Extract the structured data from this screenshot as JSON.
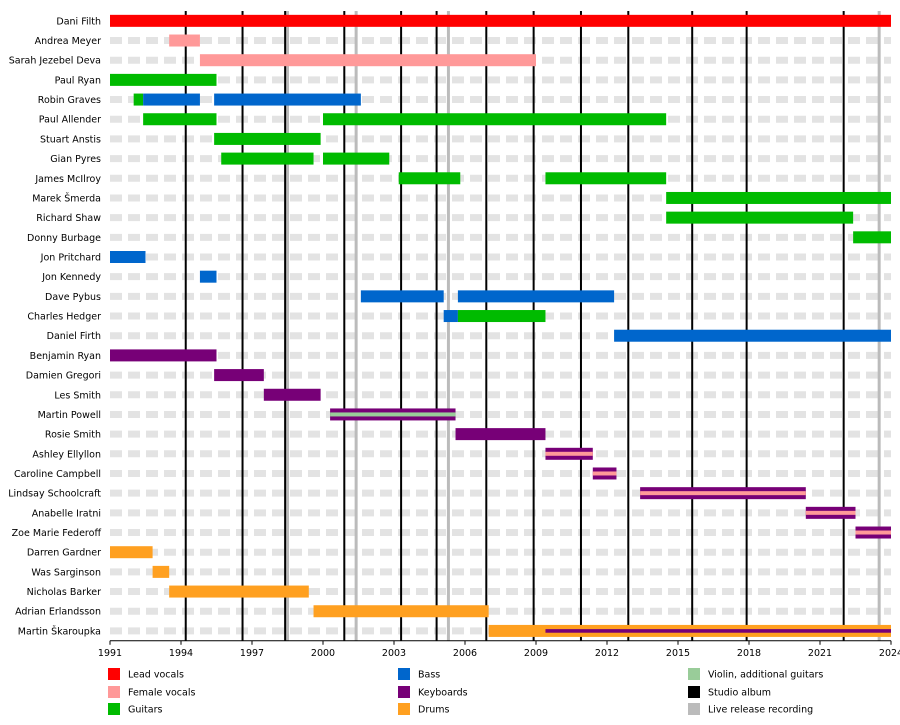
{
  "chart_data": {
    "type": "timeline",
    "title": "",
    "xlim": [
      1991,
      2024
    ],
    "x_ticks": [
      "1991",
      "1994",
      "1997",
      "2000",
      "2003",
      "2006",
      "2009",
      "2012",
      "2015",
      "2018",
      "2021",
      "2024"
    ],
    "colors": {
      "lead_vocals": "#ff0000",
      "female_vocals": "#ff9999",
      "guitars": "#00bb00",
      "bass": "#0066cc",
      "keyboards": "#770077",
      "drums": "#ffa020",
      "violin": "#99cc99",
      "studio": "#000000",
      "live": "#bbbbbb"
    },
    "members": [
      {
        "name": "Dani Filth",
        "bars": [
          {
            "role": "lead_vocals",
            "start": 1991.0,
            "end": 2024.0
          }
        ]
      },
      {
        "name": "Andrea Meyer",
        "bars": [
          {
            "role": "female_vocals",
            "start": 1993.5,
            "end": 1994.8
          }
        ]
      },
      {
        "name": "Sarah Jezebel Deva",
        "bars": [
          {
            "role": "female_vocals",
            "start": 1994.8,
            "end": 2009.0
          }
        ]
      },
      {
        "name": "Paul Ryan",
        "bars": [
          {
            "role": "guitars",
            "start": 1991.0,
            "end": 1995.5
          }
        ]
      },
      {
        "name": "Robin Graves",
        "bars": [
          {
            "role": "guitars",
            "start": 1992.0,
            "end": 1992.4
          },
          {
            "role": "bass",
            "start": 1992.4,
            "end": 1994.8
          },
          {
            "role": "bass",
            "start": 1995.4,
            "end": 2001.6
          }
        ]
      },
      {
        "name": "Paul Allender",
        "bars": [
          {
            "role": "guitars",
            "start": 1992.4,
            "end": 1995.5
          },
          {
            "role": "guitars",
            "start": 2000.0,
            "end": 2014.5
          }
        ]
      },
      {
        "name": "Stuart Anstis",
        "bars": [
          {
            "role": "guitars",
            "start": 1995.4,
            "end": 1999.9
          }
        ]
      },
      {
        "name": "Gian Pyres",
        "bars": [
          {
            "role": "guitars",
            "start": 1995.7,
            "end": 1999.6
          },
          {
            "role": "guitars",
            "start": 2000.0,
            "end": 2002.8
          }
        ]
      },
      {
        "name": "James McIlroy",
        "bars": [
          {
            "role": "guitars",
            "start": 2003.2,
            "end": 2005.8
          },
          {
            "role": "guitars",
            "start": 2009.4,
            "end": 2014.5
          }
        ]
      },
      {
        "name": "Marek Šmerda",
        "bars": [
          {
            "role": "guitars",
            "start": 2014.5,
            "end": 2024.0
          }
        ]
      },
      {
        "name": "Richard Shaw",
        "bars": [
          {
            "role": "guitars",
            "start": 2014.5,
            "end": 2022.4
          }
        ]
      },
      {
        "name": "Donny Burbage",
        "bars": [
          {
            "role": "guitars",
            "start": 2022.4,
            "end": 2024.0
          }
        ]
      },
      {
        "name": "Jon Pritchard",
        "bars": [
          {
            "role": "bass",
            "start": 1991.0,
            "end": 1992.5
          }
        ]
      },
      {
        "name": "Jon Kennedy",
        "bars": [
          {
            "role": "bass",
            "start": 1994.8,
            "end": 1995.5
          }
        ]
      },
      {
        "name": "Dave Pybus",
        "bars": [
          {
            "role": "bass",
            "start": 2001.6,
            "end": 2005.1
          },
          {
            "role": "bass",
            "start": 2005.7,
            "end": 2012.3
          }
        ]
      },
      {
        "name": "Charles Hedger",
        "bars": [
          {
            "role": "bass",
            "start": 2005.1,
            "end": 2005.7
          },
          {
            "role": "guitars",
            "start": 2005.7,
            "end": 2009.4
          }
        ]
      },
      {
        "name": "Daniel Firth",
        "bars": [
          {
            "role": "bass",
            "start": 2012.3,
            "end": 2024.0
          }
        ]
      },
      {
        "name": "Benjamin Ryan",
        "bars": [
          {
            "role": "keyboards",
            "start": 1991.0,
            "end": 1995.5
          }
        ]
      },
      {
        "name": "Damien Gregori",
        "bars": [
          {
            "role": "keyboards",
            "start": 1995.4,
            "end": 1997.5
          }
        ]
      },
      {
        "name": "Les Smith",
        "bars": [
          {
            "role": "keyboards",
            "start": 1997.5,
            "end": 1999.9
          }
        ]
      },
      {
        "name": "Martin Powell",
        "bars": [
          {
            "role": "keyboards",
            "role2": "violin",
            "start": 2000.3,
            "end": 2005.6
          }
        ]
      },
      {
        "name": "Rosie Smith",
        "bars": [
          {
            "role": "keyboards",
            "start": 2005.6,
            "end": 2009.4
          }
        ]
      },
      {
        "name": "Ashley Ellyllon",
        "bars": [
          {
            "role": "keyboards",
            "role2": "female_vocals",
            "start": 2009.4,
            "end": 2011.4
          }
        ]
      },
      {
        "name": "Caroline Campbell",
        "bars": [
          {
            "role": "keyboards",
            "role2": "female_vocals",
            "start": 2011.4,
            "end": 2012.4
          }
        ]
      },
      {
        "name": "Lindsay Schoolcraft",
        "bars": [
          {
            "role": "keyboards",
            "role2": "female_vocals",
            "start": 2013.4,
            "end": 2020.4
          }
        ]
      },
      {
        "name": "Anabelle Iratni",
        "bars": [
          {
            "role": "keyboards",
            "role2": "female_vocals",
            "start": 2020.4,
            "end": 2022.5
          }
        ]
      },
      {
        "name": "Zoe Marie Federoff",
        "bars": [
          {
            "role": "keyboards",
            "role2": "female_vocals",
            "start": 2022.5,
            "end": 2024.0
          }
        ]
      },
      {
        "name": "Darren Gardner",
        "bars": [
          {
            "role": "drums",
            "start": 1991.0,
            "end": 1992.8
          }
        ]
      },
      {
        "name": "Was Sarginson",
        "bars": [
          {
            "role": "drums",
            "start": 1992.8,
            "end": 1993.5
          }
        ]
      },
      {
        "name": "Nicholas Barker",
        "bars": [
          {
            "role": "drums",
            "start": 1993.5,
            "end": 1999.4
          }
        ]
      },
      {
        "name": "Adrian Erlandsson",
        "bars": [
          {
            "role": "drums",
            "start": 1999.6,
            "end": 2007.0
          }
        ]
      },
      {
        "name": "Martin Škaroupka",
        "bars": [
          {
            "role": "drums",
            "start": 2007.0,
            "end": 2024.0
          },
          {
            "role": "keyboards",
            "start": 2009.4,
            "end": 2024.0,
            "thin": true
          }
        ]
      }
    ],
    "studio_albums": [
      1994.2,
      1996.6,
      1998.4,
      2000.9,
      2003.3,
      2004.8,
      2006.9,
      2008.9,
      2010.9,
      2012.9,
      2015.6,
      2017.9,
      2022.0
    ],
    "live_releases": [
      1998.5,
      2001.4,
      2005.3,
      2023.5
    ],
    "legend": [
      {
        "role": "lead_vocals",
        "label": "Lead vocals"
      },
      {
        "role": "female_vocals",
        "label": "Female vocals"
      },
      {
        "role": "guitars",
        "label": "Guitars"
      },
      {
        "role": "bass",
        "label": "Bass"
      },
      {
        "role": "keyboards",
        "label": "Keyboards"
      },
      {
        "role": "drums",
        "label": "Drums"
      },
      {
        "role": "violin",
        "label": "Violin, additional guitars"
      },
      {
        "role": "studio",
        "label": "Studio album"
      },
      {
        "role": "live",
        "label": "Live release recording"
      }
    ]
  }
}
